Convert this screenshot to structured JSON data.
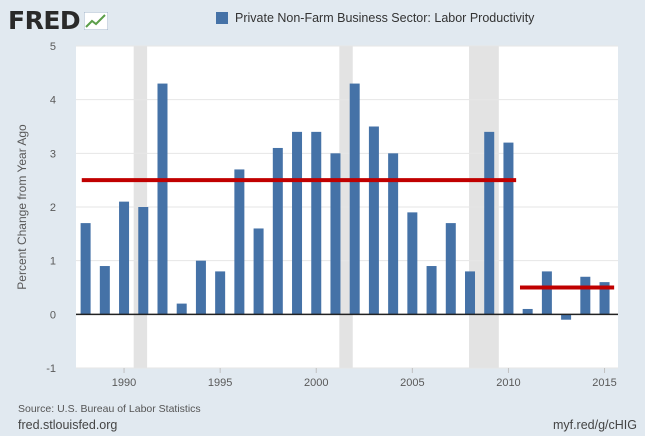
{
  "header": {
    "logo_text": "FRED",
    "logo_icon": "chart-line-icon"
  },
  "footer": {
    "source": "Source: U.S. Bureau of Labor Statistics",
    "site": "fred.stlouisfed.org",
    "short_url": "myf.red/g/cHIG"
  },
  "colors": {
    "background": "#e1e9f0",
    "plot_background": "#ffffff",
    "bar": "#4572a7",
    "reference_line": "#c00000",
    "recession_shade": "#e3e3e3"
  },
  "chart_data": {
    "type": "bar",
    "ylabel": "Percent Change from Year Ago",
    "xlabel": "",
    "ylim": [
      -1,
      5
    ],
    "yticks": [
      -1,
      0,
      1,
      2,
      3,
      4,
      5
    ],
    "xticks": [
      1990,
      1995,
      2000,
      2005,
      2010,
      2015
    ],
    "grid": "horizontal",
    "legend_position": "top",
    "series": [
      {
        "name": "Private Non-Farm Business Sector: Labor Productivity",
        "x": [
          1988,
          1989,
          1990,
          1991,
          1992,
          1993,
          1994,
          1995,
          1996,
          1997,
          1998,
          1999,
          2000,
          2001,
          2002,
          2003,
          2004,
          2005,
          2006,
          2007,
          2008,
          2009,
          2010,
          2011,
          2012,
          2013,
          2014,
          2015
        ],
        "values": [
          1.7,
          0.9,
          2.1,
          2.0,
          4.3,
          0.2,
          1.0,
          0.8,
          2.7,
          1.6,
          3.1,
          3.4,
          3.4,
          3.0,
          4.3,
          3.5,
          3.0,
          1.9,
          0.9,
          1.7,
          0.8,
          3.4,
          3.2,
          0.1,
          0.8,
          -0.1,
          0.7,
          0.6
        ]
      }
    ],
    "reference_lines": [
      {
        "x_start": 1987.8,
        "x_end": 2010.4,
        "value": 2.5
      },
      {
        "x_start": 2010.6,
        "x_end": 2015.5,
        "value": 0.5
      }
    ],
    "recession_shading": [
      {
        "start": 1990.5,
        "end": 1991.2
      },
      {
        "start": 2001.2,
        "end": 2001.9
      },
      {
        "start": 2007.95,
        "end": 2009.5
      }
    ]
  }
}
